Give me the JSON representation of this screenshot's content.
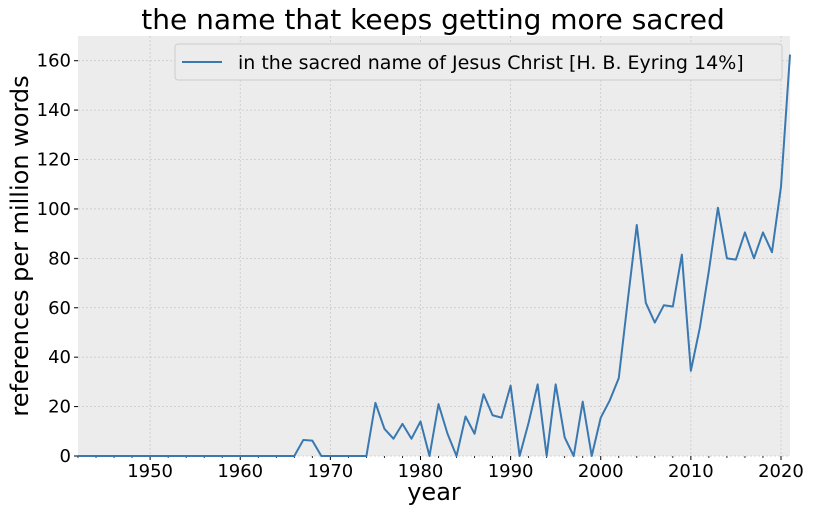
{
  "chart_data": {
    "type": "line",
    "title": "the name that keeps getting more sacred",
    "xlabel": "year",
    "ylabel": "references per million words",
    "xlim": [
      1942,
      2021
    ],
    "ylim": [
      0,
      170
    ],
    "xticks": [
      1950,
      1960,
      1970,
      1980,
      1990,
      2000,
      2010,
      2020
    ],
    "yticks": [
      0,
      20,
      40,
      60,
      80,
      100,
      120,
      140,
      160
    ],
    "grid": true,
    "legend_position": "top-right",
    "series": [
      {
        "name": "in the sacred name of Jesus Christ [H. B. Eyring 14%]",
        "color": "#3a78b0",
        "x": [
          1942,
          1943,
          1944,
          1945,
          1946,
          1947,
          1948,
          1949,
          1950,
          1951,
          1952,
          1953,
          1954,
          1955,
          1956,
          1957,
          1958,
          1959,
          1960,
          1961,
          1962,
          1963,
          1964,
          1965,
          1966,
          1967,
          1968,
          1969,
          1970,
          1971,
          1972,
          1973,
          1974,
          1975,
          1976,
          1977,
          1978,
          1979,
          1980,
          1981,
          1982,
          1983,
          1984,
          1985,
          1986,
          1987,
          1988,
          1989,
          1990,
          1991,
          1992,
          1993,
          1994,
          1995,
          1996,
          1997,
          1998,
          1999,
          2000,
          2001,
          2002,
          2003,
          2004,
          2005,
          2006,
          2007,
          2008,
          2009,
          2010,
          2011,
          2012,
          2013,
          2014,
          2015,
          2016,
          2017,
          2018,
          2019,
          2020,
          2021
        ],
        "y": [
          0,
          0,
          0,
          0,
          0,
          0,
          0,
          0,
          0,
          0,
          0,
          0,
          0,
          0,
          0,
          0,
          0,
          0,
          0,
          0,
          0,
          0,
          0,
          0,
          0,
          6.5,
          6.2,
          0,
          0,
          0,
          0,
          0,
          0,
          21.5,
          11,
          7,
          13,
          7,
          14,
          0,
          21,
          9,
          0,
          16,
          9,
          25,
          16.5,
          15.5,
          28.5,
          0,
          13.5,
          29,
          0,
          29,
          7.5,
          0,
          22,
          0,
          15.5,
          22.5,
          31.5,
          63,
          93.5,
          62,
          54,
          61,
          60.5,
          81.5,
          34.5,
          52,
          75,
          100.5,
          80,
          79.5,
          90.5,
          80,
          90.5,
          82.5,
          109,
          162.5
        ]
      }
    ]
  }
}
